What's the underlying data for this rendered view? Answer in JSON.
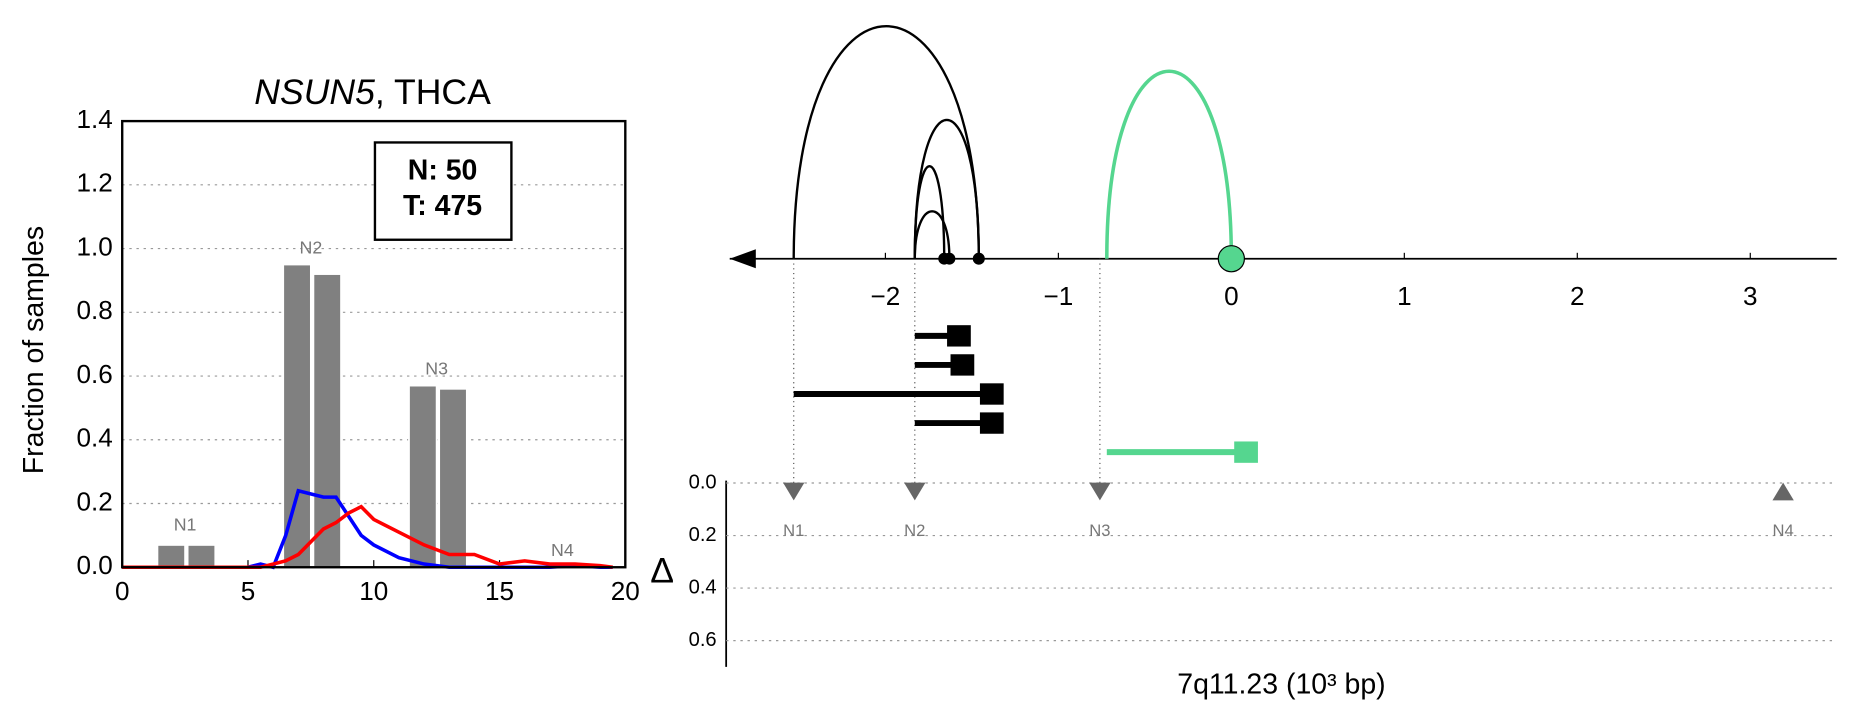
{
  "chart_data": [
    {
      "type": "bar",
      "title_italic": "NSUN5",
      "title": ", THCA",
      "ylabel": "Fraction of samples",
      "xlim": [
        0,
        20
      ],
      "xticks": [
        0,
        5,
        10,
        15,
        20
      ],
      "ylim": [
        0,
        1.4
      ],
      "yticks": [
        {
          "value": 0,
          "label": "0.0"
        },
        0.2,
        0.4,
        0.6,
        0.8,
        {
          "value": 1,
          "label": "1.0"
        },
        1.2,
        1.4
      ],
      "grid": true,
      "bar_color": "#808080",
      "bars": {
        "x": [
          1.95,
          3.15,
          6.95,
          8.15,
          11.95,
          13.15
        ],
        "values": [
          0.07,
          0.07,
          0.95,
          0.92,
          0.57,
          0.56
        ]
      },
      "annotations": [
        {
          "text": "N1",
          "x": 2.5,
          "y": 0.13
        },
        {
          "text": "N2",
          "x": 7.5,
          "y": 1.0
        },
        {
          "text": "N3",
          "x": 12.5,
          "y": 0.62
        },
        {
          "text": "N4",
          "x": 17.5,
          "y": 0.05
        }
      ],
      "box": [
        "N: 50",
        "T: 475"
      ],
      "x": [
        0,
        1,
        2,
        3,
        4,
        5,
        5.5,
        6,
        6.5,
        7,
        8,
        8.5,
        9,
        9.5,
        10,
        11,
        12,
        13,
        14,
        15,
        16,
        17,
        18,
        19,
        19.5
      ],
      "series": [
        {
          "color": "#0000ff",
          "values": [
            0,
            0,
            0,
            0,
            0,
            0,
            0.01,
            0,
            0.1,
            0.24,
            0.22,
            0.22,
            0.16,
            0.1,
            0.07,
            0.03,
            0.01,
            0,
            0,
            0,
            0,
            0,
            0.005,
            0,
            0
          ]
        },
        {
          "color": "#ff0000",
          "values": [
            0,
            0,
            0,
            0,
            0,
            0,
            0,
            0.01,
            0.02,
            0.04,
            0.12,
            0.14,
            0.17,
            0.19,
            0.15,
            0.11,
            0.07,
            0.04,
            0.04,
            0.01,
            0.02,
            0.01,
            0.01,
            0.005,
            0
          ]
        }
      ]
    },
    {
      "type": "arc",
      "xlim": [
        -2.9,
        3.5
      ],
      "xticks": [
        {
          "value": -2,
          "label": "−2"
        },
        {
          "value": -1,
          "label": "−1"
        },
        0,
        1,
        2,
        3
      ],
      "xlabel": "7q11.23 (10³ bp)",
      "arcs": [
        {
          "from": -2.53,
          "to": -1.46,
          "height": 196,
          "color": "#000000"
        },
        {
          "from": -1.83,
          "to": -1.46,
          "height": 117,
          "color": "#000000"
        },
        {
          "from": -1.83,
          "to": -1.66,
          "height": 78,
          "color": "#000000"
        },
        {
          "from": -1.83,
          "to": -1.63,
          "height": 40,
          "color": "#000000"
        },
        {
          "from": -0.72,
          "to": 0,
          "height": 158,
          "color": "#55d68f"
        }
      ],
      "segments": [
        {
          "start": -1.83,
          "end": -1.52,
          "color": "#000000"
        },
        {
          "start": -1.83,
          "end": -1.5,
          "color": "#000000"
        },
        {
          "start": -2.53,
          "end": -1.33,
          "color": "#000000"
        },
        {
          "start": -1.83,
          "end": -1.33,
          "color": "#000000"
        },
        {
          "start": -0.72,
          "end": 0.14,
          "color": "#55d68f"
        }
      ],
      "track": {
        "ylabel": "Δ",
        "ylim": [
          0,
          0.7
        ],
        "yticks": [
          {
            "value": 0,
            "label": "0.0"
          },
          0.2,
          0.4,
          0.6
        ],
        "markers": [
          {
            "label": "N1",
            "x": -2.53,
            "y": 0.03,
            "direction": "down"
          },
          {
            "label": "N2",
            "x": -1.83,
            "y": 0.03,
            "direction": "down"
          },
          {
            "label": "N3",
            "x": -0.76,
            "y": 0.03,
            "direction": "down"
          },
          {
            "label": "N4",
            "x": 3.19,
            "y": 0.03,
            "direction": "up"
          }
        ]
      }
    }
  ]
}
